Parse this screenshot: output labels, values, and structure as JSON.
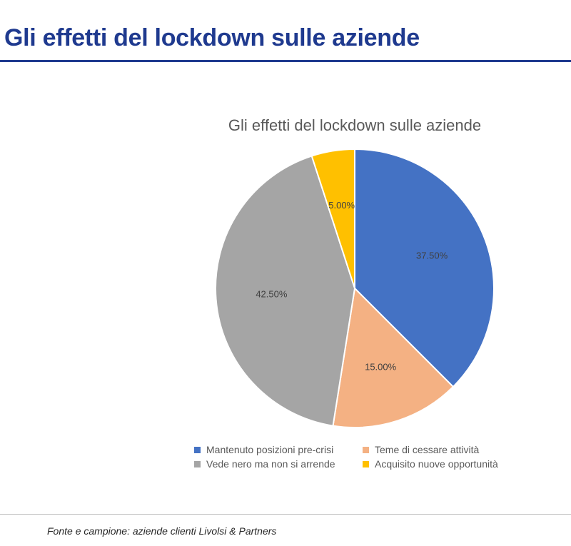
{
  "page": {
    "title": "Gli effetti del lockdown sulle aziende",
    "source": "Fonte e campione: aziende clienti Livolsi & Partners"
  },
  "colors": {
    "accent": "#1f3a8f"
  },
  "chart_data": {
    "type": "pie",
    "title": "Gli effetti del lockdown sulle aziende",
    "legend_position": "bottom",
    "slices": [
      {
        "name": "Mantenuto posizioni pre-crisi",
        "value": 37.5,
        "label": "37.50%",
        "color": "#4472c4"
      },
      {
        "name": "Teme di cessare attività",
        "value": 15.0,
        "label": "15.00%",
        "color": "#f4b183"
      },
      {
        "name": "Vede nero ma non si arrende",
        "value": 42.5,
        "label": "42.50%",
        "color": "#a5a5a5"
      },
      {
        "name": "Acquisito nuove opportunità",
        "value": 5.0,
        "label": "5.00%",
        "color": "#ffc000"
      }
    ]
  }
}
